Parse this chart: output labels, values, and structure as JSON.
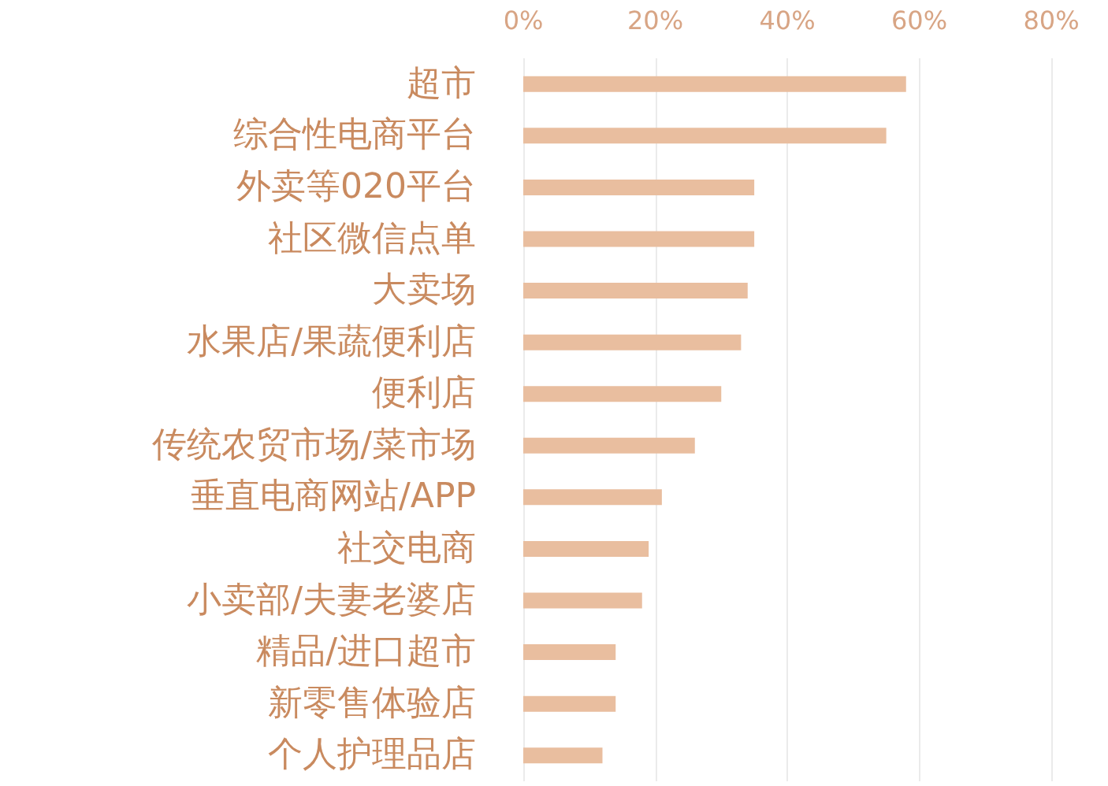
{
  "chart_data": {
    "type": "bar",
    "orientation": "horizontal",
    "categories": [
      "超市",
      "综合性电商平台",
      "外卖等020平台",
      "社区微信点单",
      "大卖场",
      "水果店/果蔬便利店",
      "便利店",
      "传统农贸市场/菜市场",
      "垂直电商网站/APP",
      "社交电商",
      "小卖部/夫妻老婆店",
      "精品/进口超市",
      "新零售体验店",
      "个人护理品店"
    ],
    "values": [
      58,
      55,
      35,
      35,
      34,
      33,
      30,
      26,
      21,
      19,
      18,
      14,
      14,
      12
    ],
    "color": "#e9be9f",
    "xlim": [
      0,
      80
    ],
    "xticks": [
      {
        "value": 0,
        "label": "0%"
      },
      {
        "value": 20,
        "label": "20%"
      },
      {
        "value": 40,
        "label": "40%"
      },
      {
        "value": 60,
        "label": "60%"
      },
      {
        "value": 80,
        "label": "80%"
      }
    ],
    "grid": "x"
  }
}
